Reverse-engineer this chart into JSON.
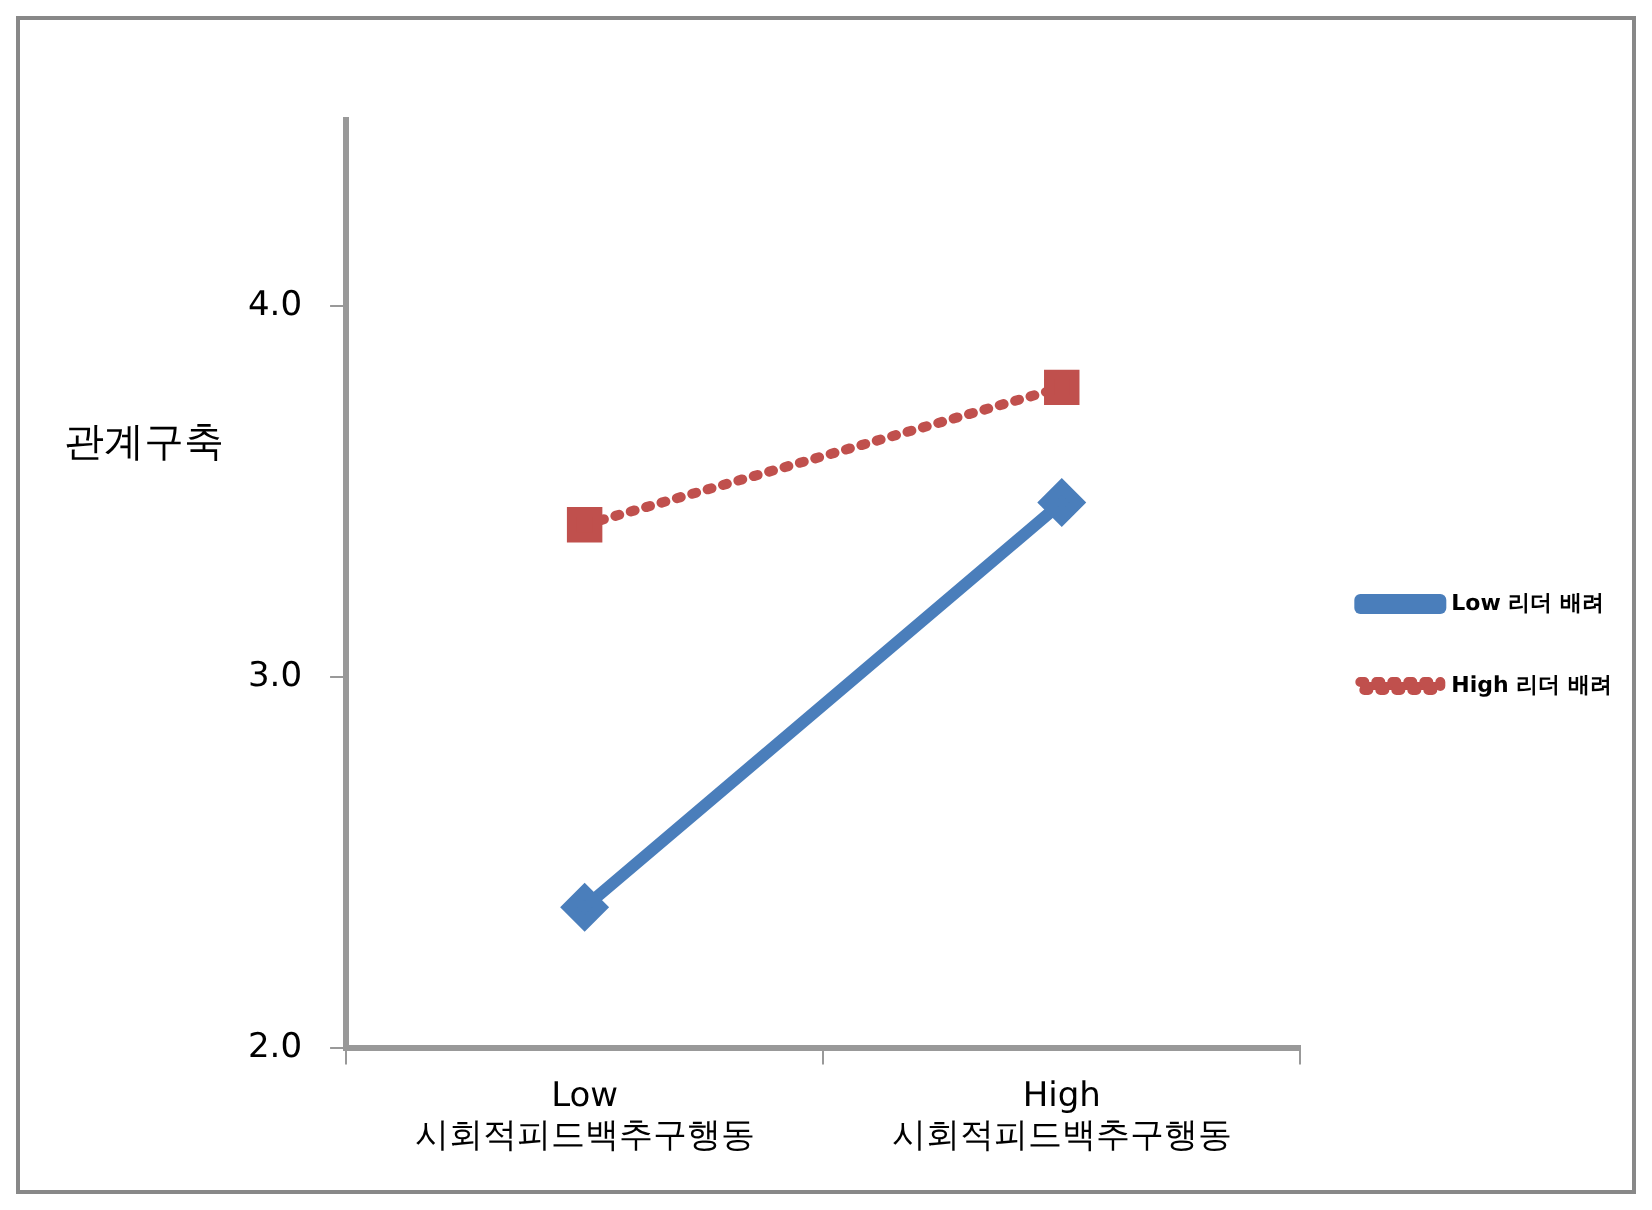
{
  "chart_data": {
    "type": "line",
    "ylabel": "관계구축",
    "categories": [
      "Low\n시회적피드백추구행동",
      "High\n시회적피드백추구행동"
    ],
    "series": [
      {
        "name": "Low 리더 배려",
        "color": "#4a7ebb",
        "values": [
          2.38,
          3.47
        ],
        "marker": "diamond",
        "line_style": "solid"
      },
      {
        "name": "High 리더 배려",
        "color": "#c0504d",
        "values": [
          3.41,
          3.78
        ],
        "marker": "square",
        "line_style": "dotted"
      }
    ],
    "ylim": [
      2,
      4.5
    ],
    "yticks": [
      {
        "value": 2,
        "label": "2.0"
      },
      {
        "value": 3,
        "label": "3.0"
      },
      {
        "value": 4,
        "label": "4.0"
      }
    ],
    "grid": false,
    "legend": "right"
  }
}
